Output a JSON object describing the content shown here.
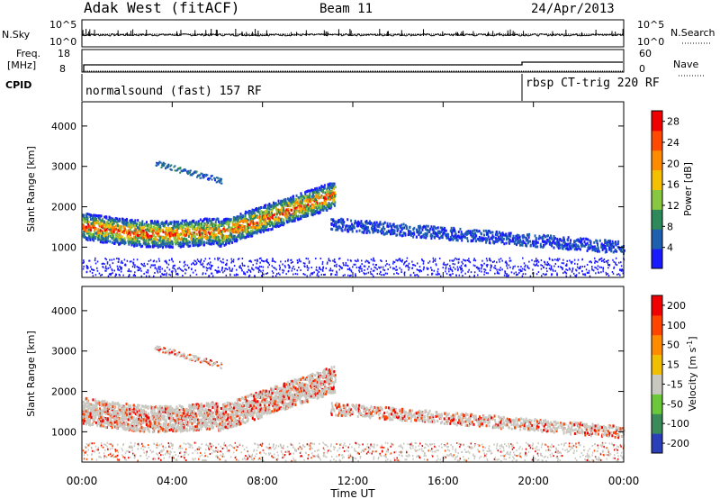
{
  "header": {
    "station": "Adak West (fitACF)",
    "beam": "Beam 11",
    "date": "24/Apr/2013"
  },
  "panels": {
    "nsky": {
      "left_label": "N.Sky",
      "right_label": "N.Search",
      "ticks_left": [
        "10^5",
        "10^0"
      ],
      "ticks_right": [
        "10^5",
        "10^0"
      ]
    },
    "freq": {
      "left_label_line1": "Freq.",
      "left_label_line2": "[MHz]",
      "ticks_left": [
        "18",
        "8"
      ],
      "right_label": "Nave",
      "ticks_right": [
        "60",
        "0"
      ]
    },
    "cpid": {
      "label": "CPID",
      "program1": "normalsound (fast) 157 RF",
      "program2": "rbsp CT-trig 220 RF"
    }
  },
  "chart_data": [
    {
      "type": "heatmap",
      "title": "",
      "xlabel": "Time UT",
      "ylabel": "Slant Range [km]",
      "xticks": [
        "00:00",
        "04:00",
        "08:00",
        "12:00",
        "16:00",
        "20:00",
        "00:00"
      ],
      "xlim_hours": [
        0,
        24
      ],
      "yticks": [
        "1000",
        "2000",
        "3000",
        "4000"
      ],
      "ylim": [
        250,
        4600
      ],
      "colorbar": {
        "label": "Power [dB]",
        "ticks": [
          "4",
          "8",
          "12",
          "16",
          "20",
          "24",
          "28"
        ],
        "range": [
          0,
          30
        ],
        "colors": [
          "#1a1aff",
          "#1f5fb0",
          "#2e8a5a",
          "#88c840",
          "#f5c000",
          "#ff8c00",
          "#ff4a00",
          "#f00000"
        ]
      }
    },
    {
      "type": "heatmap",
      "title": "",
      "xlabel": "Time UT",
      "ylabel": "Slant Range [km]",
      "xticks": [
        "00:00",
        "04:00",
        "08:00",
        "12:00",
        "16:00",
        "20:00",
        "00:00"
      ],
      "xlim_hours": [
        0,
        24
      ],
      "yticks": [
        "1000",
        "2000",
        "3000",
        "4000"
      ],
      "ylim": [
        250,
        4600
      ],
      "colorbar": {
        "label": "Velocity [m s^-1]",
        "ticks": [
          "200",
          "100",
          "50",
          "15",
          "-15",
          "-50",
          "-100",
          "-200"
        ],
        "colors": [
          "#2a3fb8",
          "#3a8a5a",
          "#6ac83a",
          "#c8c8c0",
          "#f0c000",
          "#ff8c00",
          "#ff4500",
          "#f00000"
        ]
      }
    }
  ]
}
